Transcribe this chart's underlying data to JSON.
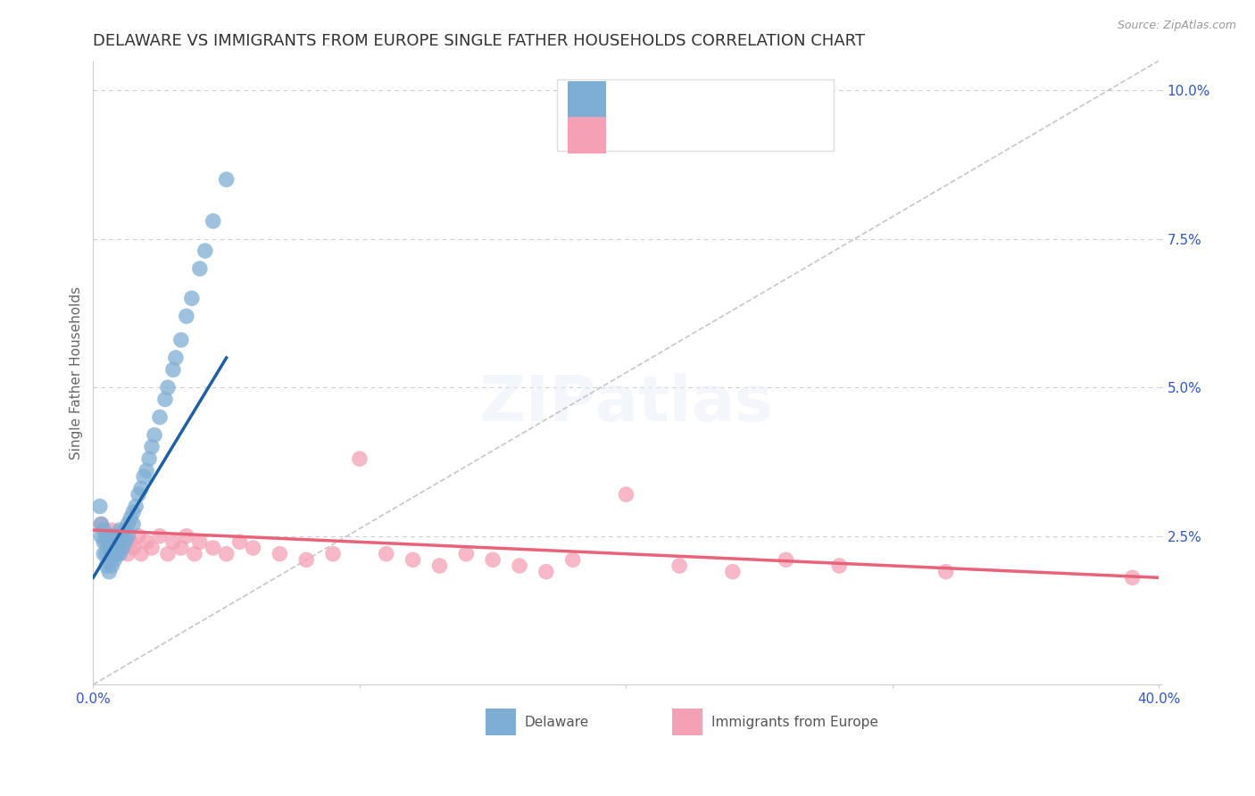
{
  "title": "DELAWARE VS IMMIGRANTS FROM EUROPE SINGLE FATHER HOUSEHOLDS CORRELATION CHART",
  "source": "Source: ZipAtlas.com",
  "ylabel": "Single Father Households",
  "xlabel_delaware": "Delaware",
  "xlabel_europe": "Immigrants from Europe",
  "xlim": [
    0.0,
    0.4
  ],
  "ylim": [
    0.0,
    0.105
  ],
  "yticks": [
    0.0,
    0.025,
    0.05,
    0.075,
    0.1
  ],
  "ytick_labels": [
    "",
    "2.5%",
    "5.0%",
    "7.5%",
    "10.0%"
  ],
  "xticks": [
    0.0,
    0.1,
    0.2,
    0.3,
    0.4
  ],
  "xtick_labels": [
    "0.0%",
    "",
    "",
    "",
    "40.0%"
  ],
  "color_delaware": "#7eaed4",
  "color_europe": "#f4a0b5",
  "color_trend_delaware": "#1a5fa8",
  "color_trend_europe": "#e8627a",
  "color_ref_line": "#c0c0c0",
  "color_grid": "#cccccc",
  "color_title": "#333333",
  "color_axis_text": "#3355cc",
  "background_color": "#ffffff",
  "delaware_x": [
    0.0025,
    0.003,
    0.003,
    0.004,
    0.004,
    0.004,
    0.005,
    0.005,
    0.005,
    0.006,
    0.006,
    0.006,
    0.006,
    0.007,
    0.007,
    0.007,
    0.008,
    0.008,
    0.008,
    0.009,
    0.009,
    0.01,
    0.01,
    0.01,
    0.011,
    0.011,
    0.012,
    0.012,
    0.013,
    0.013,
    0.014,
    0.015,
    0.015,
    0.016,
    0.017,
    0.018,
    0.019,
    0.02,
    0.021,
    0.022,
    0.023,
    0.025,
    0.027,
    0.028,
    0.03,
    0.031,
    0.033,
    0.035,
    0.037,
    0.04,
    0.042,
    0.045,
    0.05
  ],
  "delaware_y": [
    0.03,
    0.025,
    0.027,
    0.022,
    0.024,
    0.026,
    0.02,
    0.022,
    0.024,
    0.019,
    0.021,
    0.023,
    0.025,
    0.02,
    0.022,
    0.024,
    0.021,
    0.023,
    0.025,
    0.022,
    0.024,
    0.022,
    0.024,
    0.026,
    0.023,
    0.025,
    0.024,
    0.026,
    0.025,
    0.027,
    0.028,
    0.027,
    0.029,
    0.03,
    0.032,
    0.033,
    0.035,
    0.036,
    0.038,
    0.04,
    0.042,
    0.045,
    0.048,
    0.05,
    0.053,
    0.055,
    0.058,
    0.062,
    0.065,
    0.07,
    0.073,
    0.078,
    0.085
  ],
  "europe_x": [
    0.003,
    0.005,
    0.007,
    0.008,
    0.009,
    0.01,
    0.011,
    0.012,
    0.013,
    0.014,
    0.015,
    0.017,
    0.018,
    0.02,
    0.022,
    0.025,
    0.028,
    0.03,
    0.033,
    0.035,
    0.038,
    0.04,
    0.045,
    0.05,
    0.055,
    0.06,
    0.07,
    0.08,
    0.09,
    0.1,
    0.11,
    0.12,
    0.13,
    0.14,
    0.15,
    0.16,
    0.17,
    0.18,
    0.2,
    0.22,
    0.24,
    0.26,
    0.28,
    0.32,
    0.39
  ],
  "europe_y": [
    0.027,
    0.025,
    0.026,
    0.024,
    0.023,
    0.025,
    0.024,
    0.026,
    0.022,
    0.024,
    0.023,
    0.025,
    0.022,
    0.024,
    0.023,
    0.025,
    0.022,
    0.024,
    0.023,
    0.025,
    0.022,
    0.024,
    0.023,
    0.022,
    0.024,
    0.023,
    0.022,
    0.021,
    0.022,
    0.038,
    0.022,
    0.021,
    0.02,
    0.022,
    0.021,
    0.02,
    0.019,
    0.021,
    0.032,
    0.02,
    0.019,
    0.021,
    0.02,
    0.019,
    0.018
  ],
  "title_fontsize": 13,
  "axis_label_fontsize": 11,
  "tick_fontsize": 11,
  "legend_fontsize": 12
}
